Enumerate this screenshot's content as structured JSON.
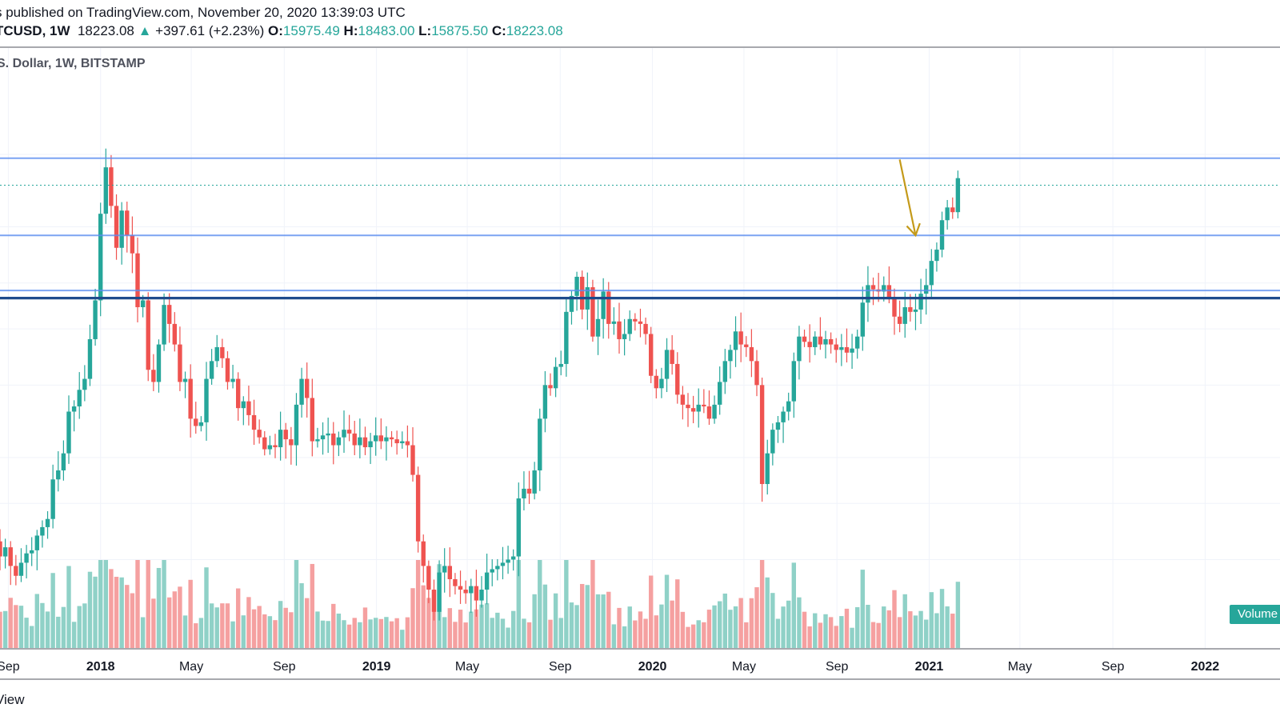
{
  "header": {
    "published": "s published on TradingView.com, November 20, 2020 13:39:03 UTC",
    "symbol": "TCUSD",
    "interval": "1W",
    "last": "18223.08",
    "change": "+397.61 (+2.23%)",
    "open_label": "O:",
    "open": "15975.49",
    "high_label": "H:",
    "high": "18483.00",
    "low_label": "L:",
    "low": "15875.50",
    "close_label": "C:",
    "close": "18223.08",
    "series_title": "S. Dollar, 1W, BITSTAMP"
  },
  "footer": {
    "brand": "View"
  },
  "volume_label": "Volume",
  "colors": {
    "up": "#26a69a",
    "down": "#ef5350",
    "up_volume": "#8fd1c7",
    "down_volume": "#f5a0a0",
    "level_line": "#5b8def",
    "strong_level": "#1e4b8c",
    "arrow": "#c49a1a"
  },
  "chart_data": {
    "type": "candlestick",
    "symbol": "BTCUSD",
    "exchange": "BITSTAMP",
    "interval": "1W",
    "x_ticks": [
      "Sep",
      "2018",
      "May",
      "Sep",
      "2019",
      "May",
      "Sep",
      "2020",
      "May",
      "Sep",
      "2021",
      "May",
      "Sep",
      "2022"
    ],
    "x_ticks_bold": [
      "2018",
      "2019",
      "2020",
      "2021",
      "2022"
    ],
    "x_range": [
      "2017-08-21",
      "2022-02-14"
    ],
    "price_scale": "log",
    "y_range": [
      2600,
      24000
    ],
    "horizontal_levels": [
      {
        "price": 19700,
        "style": "solid",
        "color": "#5b8def"
      },
      {
        "price": 17700,
        "style": "dotted",
        "color": "#26a69a"
      },
      {
        "price": 14500,
        "style": "solid",
        "color": "#5b8def"
      },
      {
        "price": 11650,
        "style": "solid",
        "color": "#5b8def"
      },
      {
        "price": 11300,
        "style": "solid-thick",
        "color": "#1e4b8c"
      }
    ],
    "annotations": [
      {
        "type": "arrow",
        "from": [
          "2020-11-23",
          19600
        ],
        "to": [
          "2020-12-14",
          14500
        ],
        "color": "#c49a1a"
      }
    ],
    "weekly_closes": [
      4050,
      4200,
      3900,
      3750,
      3950,
      4100,
      4150,
      4400,
      4550,
      4700,
      5500,
      5700,
      6100,
      7200,
      7350,
      7850,
      8200,
      9600,
      11200,
      15800,
      19000,
      16300,
      13800,
      16000,
      14500,
      13500,
      10900,
      11200,
      8500,
      8100,
      9400,
      11000,
      10200,
      9400,
      8100,
      8200,
      7000,
      6800,
      6900,
      8200,
      8800,
      9300,
      8900,
      8100,
      8200,
      7300,
      7500,
      7100,
      6700,
      6500,
      6200,
      6300,
      6250,
      6700,
      6450,
      6300,
      7400,
      8200,
      7600,
      6400,
      6450,
      6550,
      6600,
      6300,
      6500,
      6700,
      6600,
      6300,
      6500,
      6250,
      6400,
      6550,
      6400,
      6500,
      6450,
      6350,
      6400,
      6300,
      5600,
      4300,
      3900,
      3550,
      3250,
      3800,
      3900,
      3700,
      3600,
      3550,
      3500,
      3600,
      3400,
      3550,
      3800,
      3850,
      3900,
      3950,
      4000,
      4050,
      5100,
      5300,
      5200,
      5700,
      7000,
      8000,
      7900,
      8600,
      8700,
      10700,
      11400,
      12300,
      10800,
      11800,
      9700,
      10400,
      11600,
      10200,
      10300,
      9600,
      9800,
      10400,
      10300,
      10200,
      9800,
      8300,
      7900,
      8200,
      9200,
      8700,
      7700,
      7400,
      7300,
      7200,
      7400,
      7350,
      7000,
      7400,
      8100,
      8800,
      9200,
      9900,
      9400,
      9300,
      8800,
      8000,
      5400,
      6100,
      6700,
      6900,
      7200,
      7500,
      8800,
      9700,
      9500,
      9300,
      9700,
      9400,
      9600,
      9400,
      9200,
      9300,
      9100,
      9250,
      9700,
      11100,
      11900,
      11700,
      11600,
      11900,
      11300,
      10500,
      10200,
      10900,
      10700,
      10800,
      11500,
      11900,
      13100,
      13700,
      15400,
      16200,
      15900,
      18200
    ]
  }
}
